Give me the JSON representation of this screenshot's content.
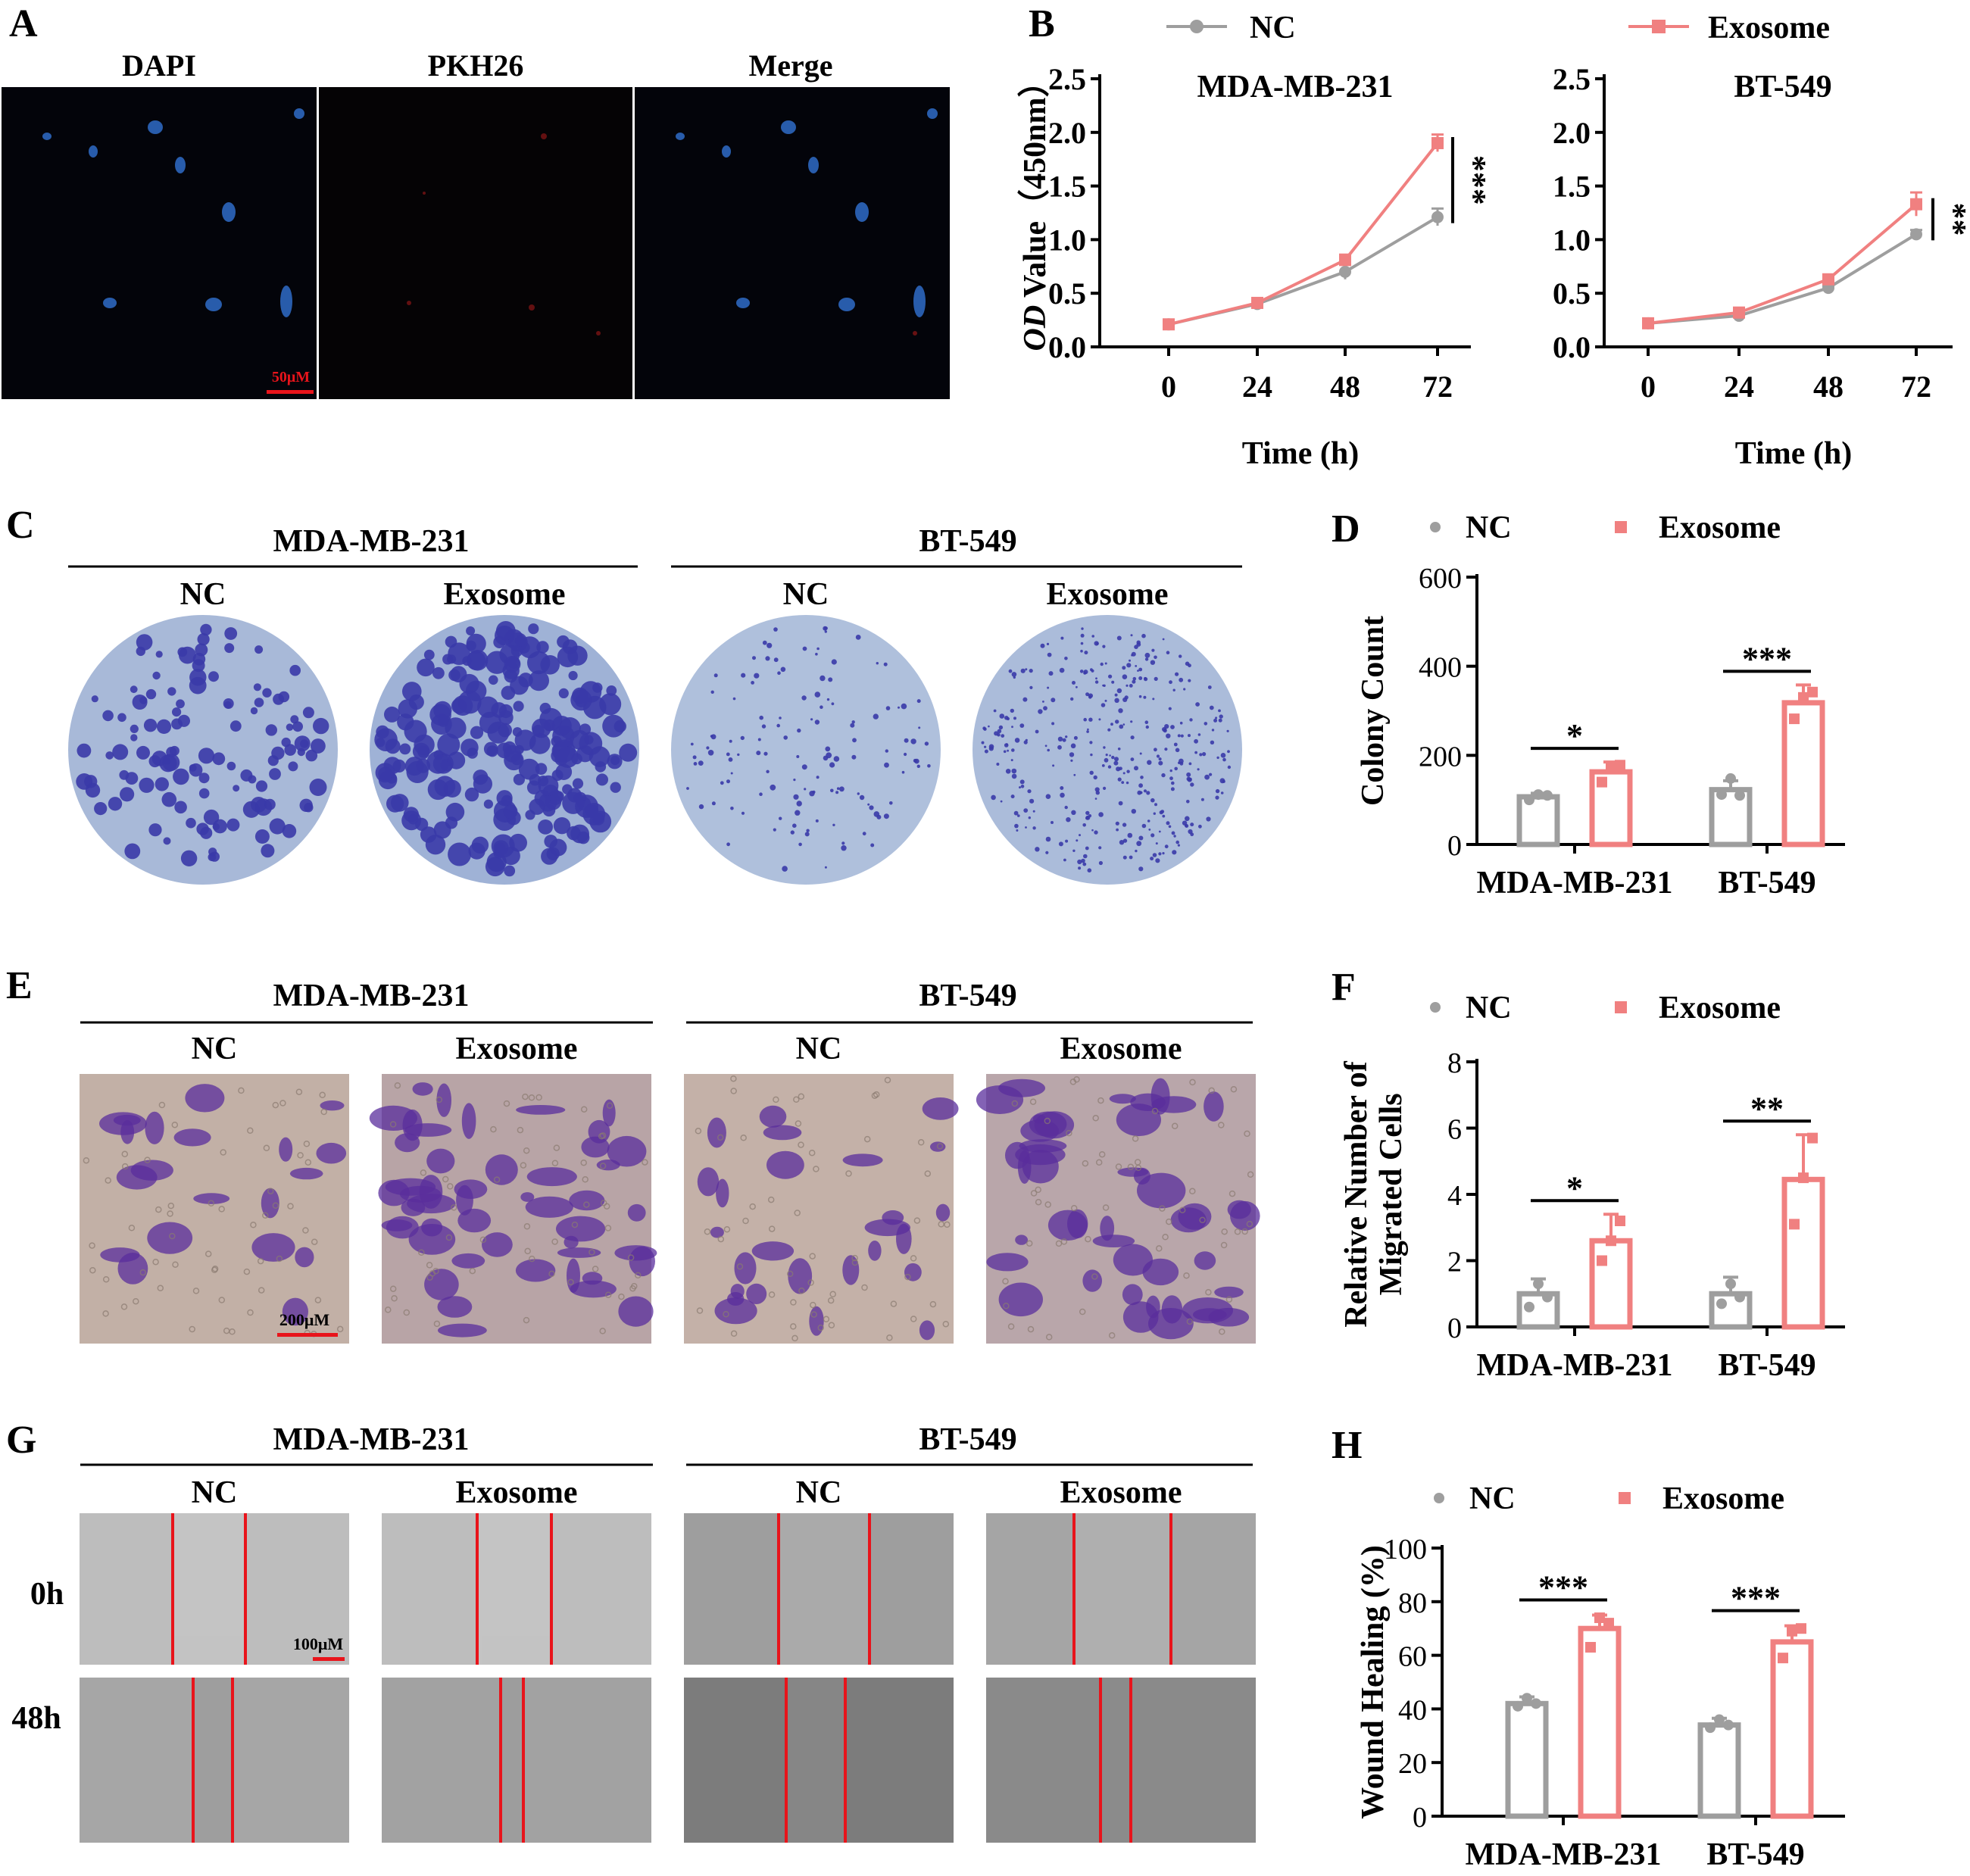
{
  "panels": {
    "A": {
      "letter": "A",
      "channels": [
        "DAPI",
        "PKH26",
        "Merge"
      ],
      "scale_bar": "50μM"
    },
    "B": {
      "letter": "B",
      "legend": [
        "NC",
        "Exosome"
      ],
      "ylabel_italic": "OD",
      "ylabel_rest": " Value（450nm）",
      "xlabel": "Time (h)"
    },
    "C": {
      "letter": "C",
      "cell_lines": [
        "MDA-MB-231",
        "BT-549"
      ],
      "groups": [
        "NC",
        "Exosome",
        "NC",
        "Exosome"
      ]
    },
    "E": {
      "letter": "E",
      "cell_lines": [
        "MDA-MB-231",
        "BT-549"
      ],
      "groups": [
        "NC",
        "Exosome",
        "NC",
        "Exosome"
      ],
      "scale_bar": "200μM"
    },
    "G": {
      "letter": "G",
      "cell_lines": [
        "MDA-MB-231",
        "BT-549"
      ],
      "groups": [
        "NC",
        "Exosome",
        "NC",
        "Exosome"
      ],
      "rows": [
        "0h",
        "48h"
      ],
      "scale_bar": "100μM"
    },
    "D": {
      "letter": "D"
    },
    "F": {
      "letter": "F"
    },
    "H": {
      "letter": "H"
    }
  },
  "colors": {
    "nc": "#9e9e9e",
    "exosome": "#f08080",
    "dapi": "#3a7bd5",
    "crystal_violet": "#3a3aa8",
    "transwell_stain": "#5a2e9c",
    "wound_line": "#e8141b",
    "scale_bar_red": "#e8141b"
  },
  "chart_data": [
    {
      "id": "B1",
      "type": "line",
      "title": "MDA-MB-231",
      "xlabel": "Time (h)",
      "ylabel": "OD Value（450nm）",
      "x": [
        0,
        24,
        48,
        72
      ],
      "ylim": [
        0,
        2.5
      ],
      "yticks": [
        "0.0",
        "0.5",
        "1.0",
        "1.5",
        "2.0",
        "2.5"
      ],
      "series": [
        {
          "name": "NC",
          "values": [
            0.21,
            0.4,
            0.7,
            1.21
          ],
          "err": [
            0.02,
            0.02,
            0.07,
            0.08
          ]
        },
        {
          "name": "Exosome",
          "values": [
            0.21,
            0.41,
            0.81,
            1.9
          ],
          "err": [
            0.02,
            0.02,
            0.05,
            0.08
          ]
        }
      ],
      "significance": "***"
    },
    {
      "id": "B2",
      "type": "line",
      "title": "BT-549",
      "xlabel": "Time (h)",
      "x": [
        0,
        24,
        48,
        72
      ],
      "ylim": [
        0,
        2.5
      ],
      "yticks": [
        "0.0",
        "0.5",
        "1.0",
        "1.5",
        "2.0",
        "2.5"
      ],
      "series": [
        {
          "name": "NC",
          "values": [
            0.22,
            0.29,
            0.55,
            1.05
          ],
          "err": [
            0.01,
            0.01,
            0.02,
            0.04
          ]
        },
        {
          "name": "Exosome",
          "values": [
            0.22,
            0.32,
            0.63,
            1.33
          ],
          "err": [
            0.01,
            0.02,
            0.03,
            0.11
          ]
        }
      ],
      "significance": "**"
    },
    {
      "id": "D",
      "type": "bar",
      "ylabel": "Colony Count",
      "categories": [
        "MDA-MB-231",
        "BT-549"
      ],
      "ylim": [
        0,
        600
      ],
      "yticks": [
        "0",
        "200",
        "400",
        "600"
      ],
      "legend": [
        "NC",
        "Exosome"
      ],
      "series": [
        {
          "name": "NC",
          "values": [
            107,
            123
          ],
          "err": [
            8,
            20
          ],
          "points": [
            [
              100,
              112,
              110
            ],
            [
              112,
              148,
              110
            ]
          ]
        },
        {
          "name": "Exosome",
          "values": [
            163,
            318
          ],
          "err": [
            22,
            40
          ],
          "points": [
            [
              140,
              172,
              178
            ],
            [
              282,
              330,
              342
            ]
          ]
        }
      ],
      "significance": [
        "*",
        "***"
      ]
    },
    {
      "id": "F",
      "type": "bar",
      "ylabel": [
        "Relative Number of",
        "Migrated Cells"
      ],
      "categories": [
        "MDA-MB-231",
        "BT-549"
      ],
      "ylim": [
        0,
        8
      ],
      "yticks": [
        "0",
        "2",
        "4",
        "6",
        "8"
      ],
      "legend": [
        "NC",
        "Exosome"
      ],
      "series": [
        {
          "name": "NC",
          "values": [
            1.0,
            1.0
          ],
          "err": [
            0.45,
            0.5
          ],
          "points": [
            [
              0.6,
              1.3,
              0.9
            ],
            [
              0.7,
              1.3,
              0.9
            ]
          ]
        },
        {
          "name": "Exosome",
          "values": [
            2.6,
            4.45
          ],
          "err": [
            0.8,
            1.35
          ],
          "points": [
            [
              2.0,
              2.6,
              3.2
            ],
            [
              3.1,
              4.5,
              5.7
            ]
          ]
        }
      ],
      "significance": [
        "*",
        "**"
      ]
    },
    {
      "id": "H",
      "type": "bar",
      "ylabel": "Wound Healing (%)",
      "categories": [
        "MDA-MB-231",
        "BT-549"
      ],
      "ylim": [
        0,
        100
      ],
      "yticks": [
        "0",
        "20",
        "40",
        "60",
        "80",
        "100"
      ],
      "legend": [
        "NC",
        "Exosome"
      ],
      "series": [
        {
          "name": "NC",
          "values": [
            42,
            34
          ],
          "err": [
            2.5,
            2.5
          ],
          "points": [
            [
              41,
              44,
              42
            ],
            [
              33,
              36,
              34
            ]
          ]
        },
        {
          "name": "Exosome",
          "values": [
            70,
            65
          ],
          "err": [
            5,
            6
          ],
          "points": [
            [
              63,
              74,
              72
            ],
            [
              59,
              69,
              70
            ]
          ]
        }
      ],
      "significance": [
        "***",
        "***"
      ]
    }
  ]
}
